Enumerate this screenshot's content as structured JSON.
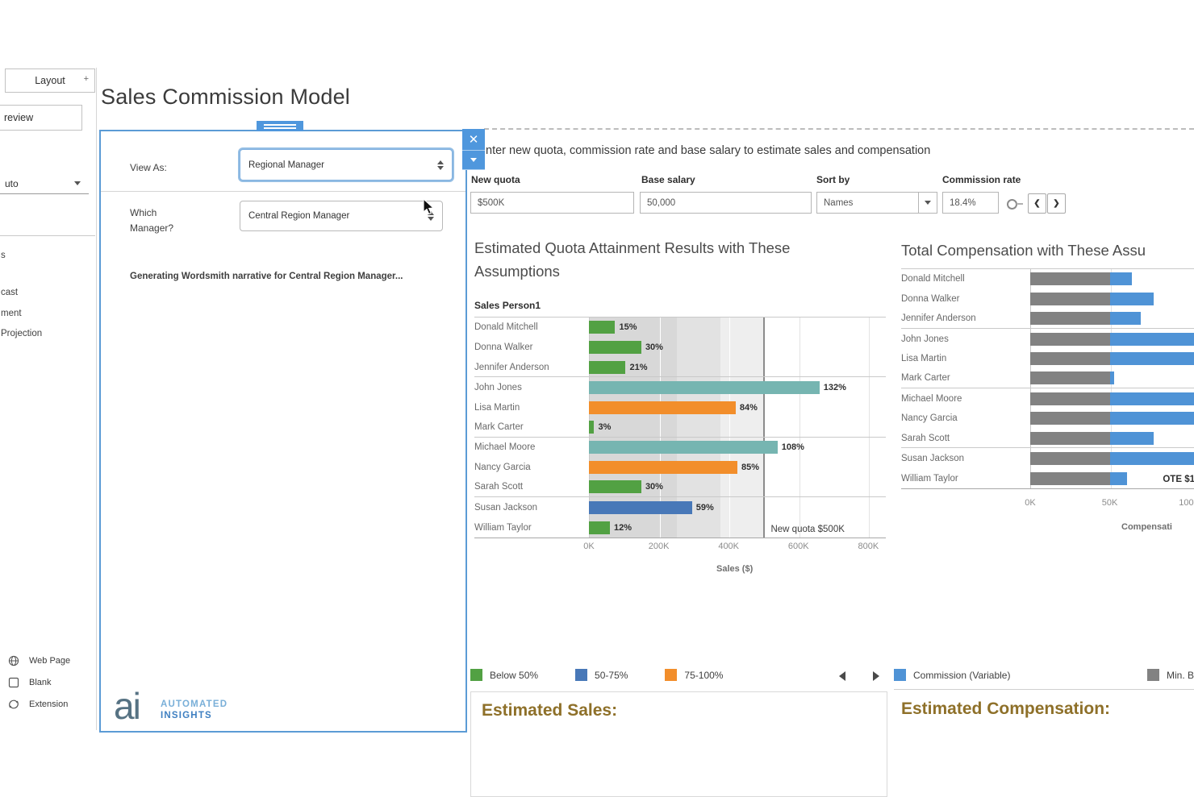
{
  "window": {
    "accent_blue": "#4f97dd",
    "gold": "#8e7029"
  },
  "sidebar": {
    "layout_tab_label": "Layout",
    "layout_tab_glyph": "+",
    "preview_button_label": "review",
    "sizing_value": "uto",
    "sheet_fragments": [
      "s",
      "cast",
      "ment",
      "Projection"
    ],
    "objects": [
      {
        "icon": "web-page-icon",
        "label": "Web Page"
      },
      {
        "icon": "blank-icon",
        "label": "Blank"
      },
      {
        "icon": "extension-icon",
        "label": "Extension"
      }
    ]
  },
  "header": {
    "title": "Sales Commission Model"
  },
  "wordsmith_panel": {
    "view_as_label": "View As:",
    "view_as_value": "Regional Manager",
    "manager_label": "Which Manager?",
    "manager_value": "Central Region Manager",
    "status_text": "Generating Wordsmith narrative for Central Region Manager...",
    "logo": {
      "mark": "ai",
      "line1": "AUTOMATED",
      "line2": "INSIGHTS"
    }
  },
  "controls": {
    "instruction": "nter new quota, commission rate and base salary to estimate sales and compensation",
    "new_quota_label": "New quota",
    "new_quota_value": "$500K",
    "base_salary_label": "Base salary",
    "base_salary_value": "50,000",
    "sort_by_label": "Sort by",
    "sort_by_value": "Names",
    "commission_rate_label": "Commission rate",
    "commission_rate_value": "18.4%"
  },
  "chart_data": [
    {
      "type": "bar",
      "title": "Estimated Quota Attainment Results with These Assumptions",
      "column_header": "Sales Person1",
      "xlabel": "Sales ($)",
      "xlim": [
        0,
        850
      ],
      "x_ticks": [
        {
          "label": "0K",
          "k": 0
        },
        {
          "label": "200K",
          "k": 200
        },
        {
          "label": "400K",
          "k": 400
        },
        {
          "label": "600K",
          "k": 600
        },
        {
          "label": "800K",
          "k": 800
        }
      ],
      "bands": [
        {
          "from": 0,
          "to": 250,
          "color": "#d8d8d8"
        },
        {
          "from": 250,
          "to": 375,
          "color": "#e2e2e2"
        },
        {
          "from": 375,
          "to": 500,
          "color": "#eeeeee"
        }
      ],
      "gridlines_k": [
        200,
        400,
        600,
        800
      ],
      "reference_line": {
        "k": 500,
        "label": "New quota $500K"
      },
      "bars": [
        {
          "name": "Donald Mitchell",
          "sales_k": 75,
          "pct": "15%",
          "color": "#52a143"
        },
        {
          "name": "Donna Walker",
          "sales_k": 150,
          "pct": "30%",
          "color": "#52a143"
        },
        {
          "name": "Jennifer Anderson",
          "sales_k": 105,
          "pct": "21%",
          "color": "#52a143"
        },
        {
          "name": "John Jones",
          "sales_k": 660,
          "pct": "132%",
          "color": "#76b5b1"
        },
        {
          "name": "Lisa Martin",
          "sales_k": 420,
          "pct": "84%",
          "color": "#f28e2b"
        },
        {
          "name": "Mark Carter",
          "sales_k": 15,
          "pct": "3%",
          "color": "#52a143"
        },
        {
          "name": "Michael Moore",
          "sales_k": 540,
          "pct": "108%",
          "color": "#76b5b1"
        },
        {
          "name": "Nancy Garcia",
          "sales_k": 425,
          "pct": "85%",
          "color": "#f28e2b"
        },
        {
          "name": "Sarah Scott",
          "sales_k": 150,
          "pct": "30%",
          "color": "#52a143"
        },
        {
          "name": "Susan Jackson",
          "sales_k": 295,
          "pct": "59%",
          "color": "#4878b8"
        },
        {
          "name": "William Taylor",
          "sales_k": 60,
          "pct": "12%",
          "color": "#52a143"
        }
      ]
    },
    {
      "type": "stacked-bar",
      "title": "Total Compensation with These Assu",
      "xlabel": "Compensati",
      "xlim_visible": [
        0,
        103
      ],
      "x_ticks": [
        {
          "label": "0K",
          "k": 0
        },
        {
          "label": "50K",
          "k": 50
        },
        {
          "label": "100K",
          "k": 100
        }
      ],
      "annotation": "OTE $1",
      "series_colors": {
        "base": "#828282",
        "commission": "#4f93d6"
      },
      "bars": [
        {
          "name": "Donald Mitchell",
          "base_k": 50,
          "commission_k": 13.8
        },
        {
          "name": "Donna Walker",
          "base_k": 50,
          "commission_k": 27.6
        },
        {
          "name": "Jennifer Anderson",
          "base_k": 50,
          "commission_k": 19.3
        },
        {
          "name": "John Jones",
          "base_k": 50,
          "commission_k": 121.4
        },
        {
          "name": "Lisa Martin",
          "base_k": 50,
          "commission_k": 77.3
        },
        {
          "name": "Mark Carter",
          "base_k": 50,
          "commission_k": 2.8
        },
        {
          "name": "Michael Moore",
          "base_k": 50,
          "commission_k": 99.4
        },
        {
          "name": "Nancy Garcia",
          "base_k": 50,
          "commission_k": 78.2
        },
        {
          "name": "Sarah Scott",
          "base_k": 50,
          "commission_k": 27.6
        },
        {
          "name": "Susan Jackson",
          "base_k": 50,
          "commission_k": 54.3
        },
        {
          "name": "William Taylor",
          "base_k": 50,
          "commission_k": 11.0
        }
      ]
    }
  ],
  "legends": {
    "attainment": [
      {
        "label": "Below 50%",
        "color": "#52a143"
      },
      {
        "label": "50-75%",
        "color": "#4878b8"
      },
      {
        "label": "75-100%",
        "color": "#f28e2b"
      }
    ],
    "compensation": [
      {
        "label": "Commission (Variable)",
        "color": "#4f93d6"
      },
      {
        "label": "Min. B",
        "color": "#828282"
      }
    ]
  },
  "sections": {
    "estimated_sales": "Estimated Sales:",
    "estimated_compensation": "Estimated Compensation:"
  }
}
